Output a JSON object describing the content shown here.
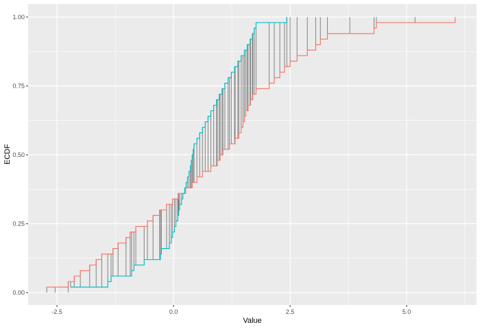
{
  "figure": {
    "background_color": "#ffffff",
    "panel_background_color": "#ebebeb",
    "gridline_color": "#ffffff",
    "tick_mark_color": "#333333",
    "tick_label_color": "#4d4d4d",
    "axis_title_color": "#000000"
  },
  "chart_data": {
    "type": "line",
    "subtype": "ecdf_step",
    "title": "",
    "xlabel": "Value",
    "ylabel": "ECDF",
    "x_ticks": [
      -2.5,
      0.0,
      2.5,
      5.0
    ],
    "x_tick_labels": [
      "-2.5",
      "0.0",
      "2.5",
      "5.0"
    ],
    "y_ticks": [
      0.0,
      0.25,
      0.5,
      0.75,
      1.0
    ],
    "y_tick_labels": [
      "0.00",
      "0.25",
      "0.50",
      "0.75",
      "1.00"
    ],
    "x_minor_gridlines": [
      -1.25,
      1.25,
      3.75,
      6.25
    ],
    "y_minor_gridlines": [
      0.125,
      0.375,
      0.625,
      0.875
    ],
    "xlim": [
      -3.12,
      6.5
    ],
    "ylim": [
      -0.045,
      1.047
    ],
    "grid": true,
    "legend": "none",
    "series": [
      {
        "id": "sample1",
        "color": "#F8766D",
        "values": [
          -2.72,
          -2.26,
          -2.13,
          -2.0,
          -1.8,
          -1.66,
          -1.54,
          -1.3,
          -1.19,
          -1.02,
          -0.93,
          -0.81,
          -0.56,
          -0.44,
          -0.3,
          -0.15,
          -0.02,
          0.1,
          0.26,
          0.4,
          0.5,
          0.62,
          0.8,
          0.94,
          1.0,
          1.06,
          1.2,
          1.32,
          1.4,
          1.45,
          1.49,
          1.52,
          1.55,
          1.6,
          1.65,
          1.7,
          1.77,
          2.05,
          2.16,
          2.28,
          2.38,
          2.5,
          2.65,
          2.87,
          3.05,
          3.15,
          3.3,
          4.3,
          4.35,
          6.04
        ]
      },
      {
        "id": "sample2",
        "color": "#00BFC4",
        "values": [
          -2.21,
          -1.41,
          -1.34,
          -0.9,
          -0.85,
          -0.63,
          -0.28,
          -0.26,
          -0.09,
          -0.05,
          -0.02,
          0.02,
          0.05,
          0.09,
          0.11,
          0.13,
          0.17,
          0.2,
          0.24,
          0.27,
          0.3,
          0.33,
          0.36,
          0.38,
          0.4,
          0.42,
          0.44,
          0.5,
          0.56,
          0.62,
          0.68,
          0.74,
          0.8,
          0.86,
          0.92,
          0.98,
          1.04,
          1.1,
          1.17,
          1.24,
          1.31,
          1.38,
          1.45,
          1.52,
          1.58,
          1.64,
          1.69,
          1.73,
          1.77,
          2.43
        ]
      }
    ],
    "difference_segments": {
      "color": "#2b2b2b",
      "opacity": 0.5,
      "width": 1.1,
      "at": "union_of_sample_points",
      "extra_x": [
        -2.54,
        3.78,
        5.18
      ]
    }
  }
}
